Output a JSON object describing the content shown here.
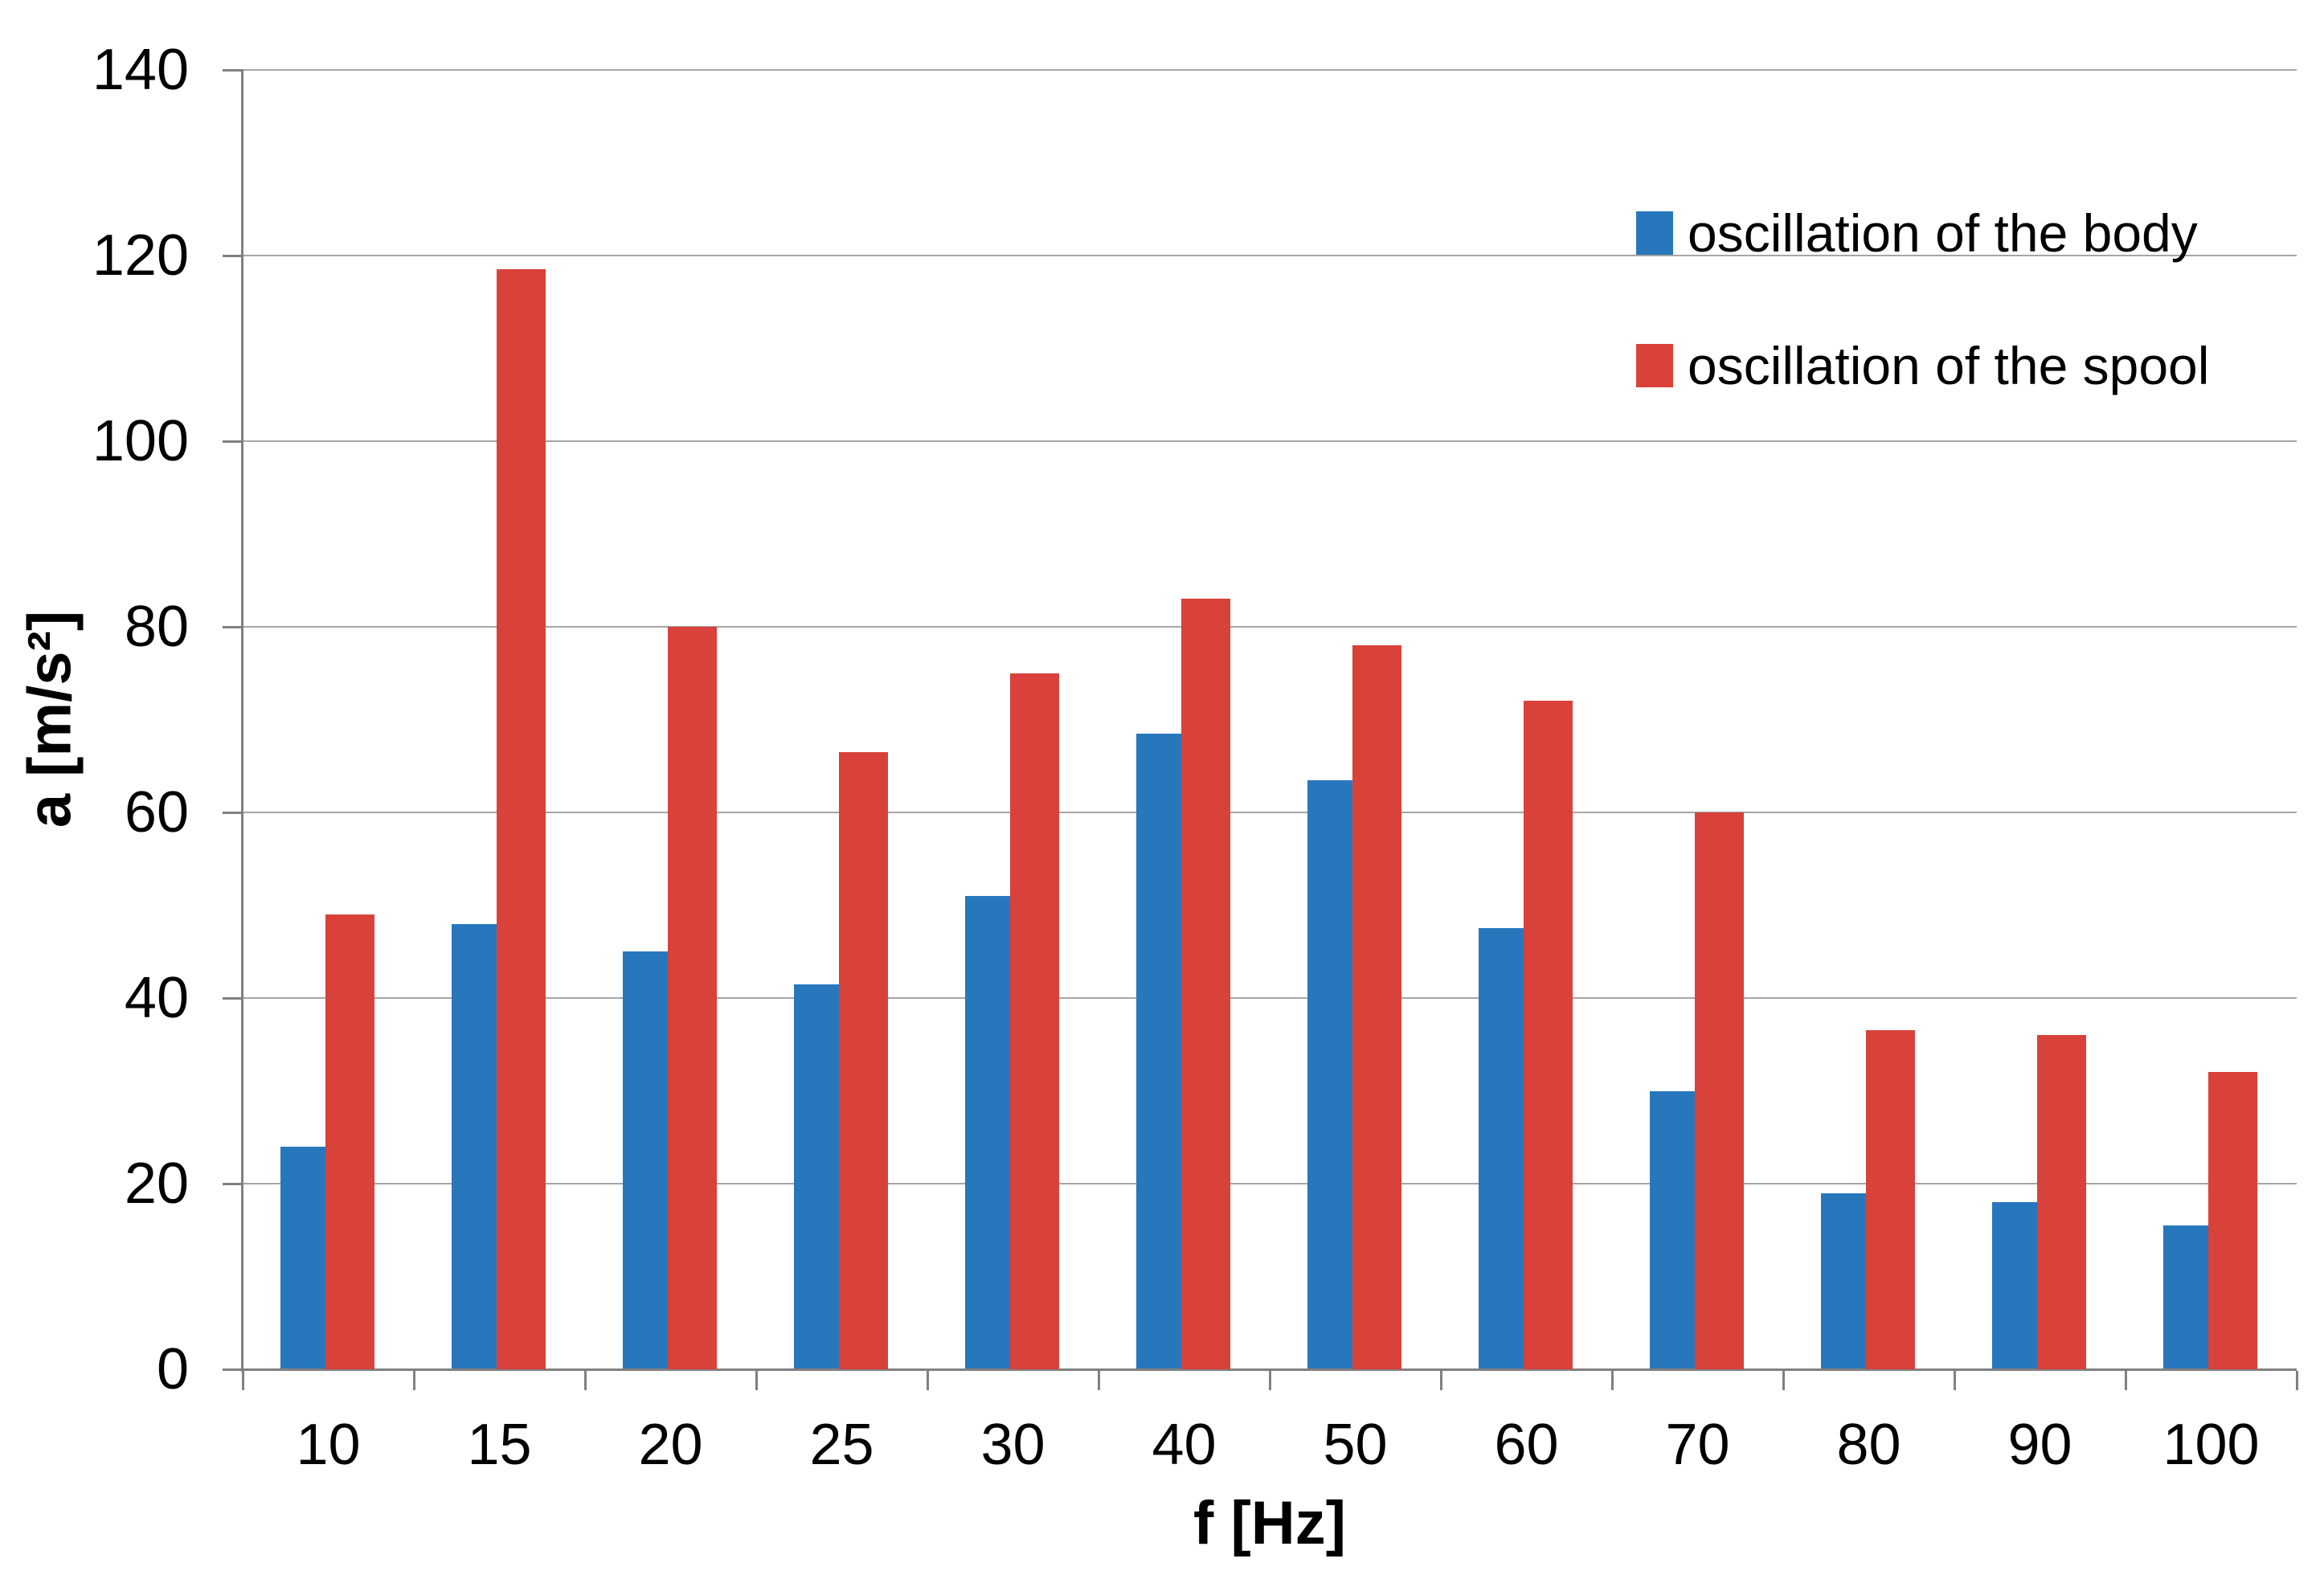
{
  "chart_data": {
    "type": "bar",
    "title": "",
    "categories": [
      "10",
      "15",
      "20",
      "25",
      "30",
      "40",
      "50",
      "60",
      "70",
      "80",
      "90",
      "100"
    ],
    "series": [
      {
        "name": "oscillation of the body",
        "color": "#2877BD",
        "values": [
          24,
          48,
          45,
          41.5,
          51,
          68.5,
          63.5,
          47.5,
          30,
          19,
          18,
          15.5
        ]
      },
      {
        "name": "oscillation of the spool",
        "color": "#D8423B",
        "values": [
          49,
          118.5,
          80,
          66.5,
          75,
          83,
          78,
          72,
          60,
          36.5,
          36,
          32
        ]
      }
    ],
    "xlabel": "f [Hz]",
    "ylabel": "a [m/s²]",
    "ylim": [
      0,
      140
    ],
    "yticks": [
      0,
      20,
      40,
      60,
      80,
      100,
      120,
      140
    ],
    "grid": "horizontal",
    "legend_position": "top-right",
    "colors": {
      "background": "#FFFFFF",
      "gridline": "#A6A6A6",
      "axis": "#808080",
      "text": "#000000"
    }
  }
}
